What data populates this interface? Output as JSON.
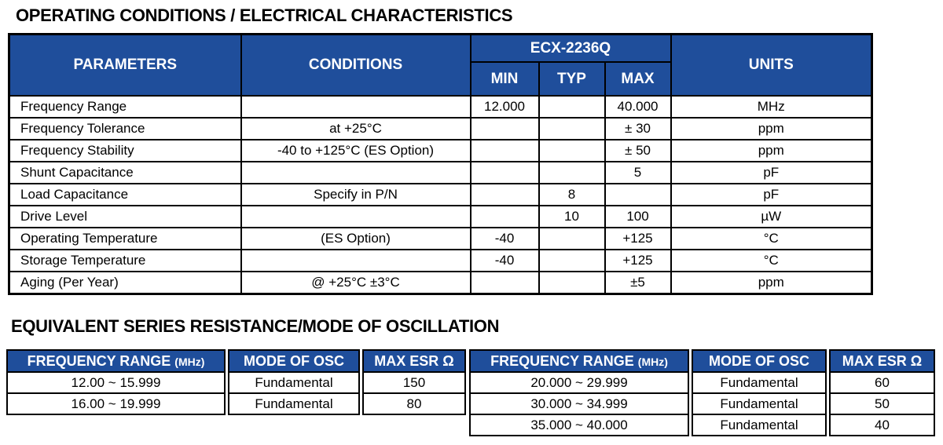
{
  "page": {
    "accent_blue": "#1F4E9B",
    "border_color": "#000000",
    "background": "#ffffff"
  },
  "section1": {
    "title": "OPERATING CONDITIONS / ELECTRICAL CHARACTERISTICS",
    "table": {
      "product": "ECX-2236Q",
      "col_parameters": "PARAMETERS",
      "col_conditions": "CONDITIONS",
      "col_min": "MIN",
      "col_typ": "TYP",
      "col_max": "MAX",
      "col_units": "UNITS",
      "rows": [
        {
          "parameter": "Frequency Range",
          "condition": "",
          "min": "12.000",
          "typ": "",
          "max": "40.000",
          "units": "MHz"
        },
        {
          "parameter": "Frequency Tolerance",
          "condition": "at +25°C",
          "min": "",
          "typ": "",
          "max": "± 30",
          "units": "ppm"
        },
        {
          "parameter": "Frequency Stability",
          "condition": "-40 to +125°C (ES Option)",
          "min": "",
          "typ": "",
          "max": "± 50",
          "units": "ppm"
        },
        {
          "parameter": "Shunt Capacitance",
          "condition": "",
          "min": "",
          "typ": "",
          "max": "5",
          "units": "pF"
        },
        {
          "parameter": "Load Capacitance",
          "condition": "Specify in P/N",
          "min": "",
          "typ": "8",
          "max": "",
          "units": "pF"
        },
        {
          "parameter": "Drive Level",
          "condition": "",
          "min": "",
          "typ": "10",
          "max": "100",
          "units": "µW"
        },
        {
          "parameter": "Operating Temperature",
          "condition": "(ES Option)",
          "min": "-40",
          "typ": "",
          "max": "+125",
          "units": "°C"
        },
        {
          "parameter": "Storage Temperature",
          "condition": "",
          "min": "-40",
          "typ": "",
          "max": "+125",
          "units": "°C"
        },
        {
          "parameter": "Aging (Per Year)",
          "condition": "@ +25°C ±3°C",
          "min": "",
          "typ": "",
          "max": "±5",
          "units": "ppm"
        }
      ]
    }
  },
  "section2": {
    "title": "EQUIVALENT SERIES RESISTANCE/MODE OF OSCILLATION",
    "headers": {
      "freq_range": "FREQUENCY RANGE",
      "freq_unit": "(MHz)",
      "mode": "MODE OF OSC",
      "esr": "MAX ESR Ω"
    },
    "left_table": {
      "rows": [
        {
          "range": "12.00 ~ 15.999",
          "mode": "Fundamental",
          "esr": "150"
        },
        {
          "range": "16.00 ~ 19.999",
          "mode": "Fundamental",
          "esr": "80"
        }
      ]
    },
    "right_table": {
      "rows": [
        {
          "range": "20.000 ~ 29.999",
          "mode": "Fundamental",
          "esr": "60"
        },
        {
          "range": "30.000 ~ 34.999",
          "mode": "Fundamental",
          "esr": "50"
        },
        {
          "range": "35.000 ~ 40.000",
          "mode": "Fundamental",
          "esr": "40"
        }
      ]
    }
  }
}
